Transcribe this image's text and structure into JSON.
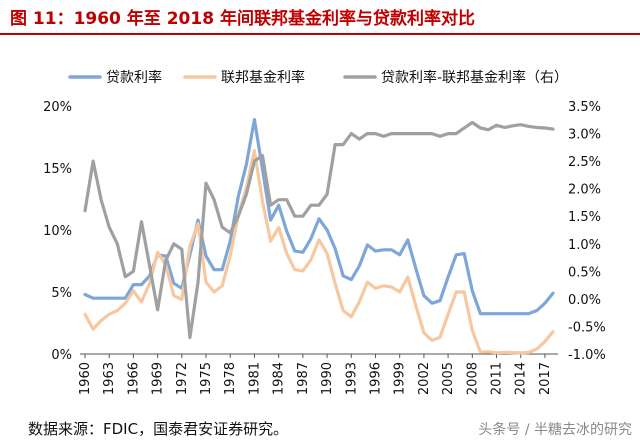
{
  "header": {
    "title": "图 11：1960 年至 2018 年间联邦基金利率与贷款利率对比"
  },
  "footer": {
    "source": "数据来源：FDIC，国泰君安证券研究。",
    "watermark": "头条号 / 半糖去冰的研究"
  },
  "chart_data": {
    "type": "line",
    "title": "图 11：1960 年至 2018 年间联邦基金利率与贷款利率对比",
    "x": [
      1960,
      1961,
      1962,
      1963,
      1964,
      1965,
      1966,
      1967,
      1968,
      1969,
      1970,
      1971,
      1972,
      1973,
      1974,
      1975,
      1976,
      1977,
      1978,
      1979,
      1980,
      1981,
      1982,
      1983,
      1984,
      1985,
      1986,
      1987,
      1988,
      1989,
      1990,
      1991,
      1992,
      1993,
      1994,
      1995,
      1996,
      1997,
      1998,
      1999,
      2000,
      2001,
      2002,
      2003,
      2004,
      2005,
      2006,
      2007,
      2008,
      2009,
      2010,
      2011,
      2012,
      2013,
      2014,
      2015,
      2016,
      2017,
      2018
    ],
    "x_ticks": [
      "1960",
      "1963",
      "1966",
      "1969",
      "1972",
      "1975",
      "1978",
      "1981",
      "1984",
      "1987",
      "1990",
      "1993",
      "1996",
      "1999",
      "2002",
      "2005",
      "2008",
      "2011",
      "2014",
      "2017"
    ],
    "y_left": {
      "range": [
        0,
        20
      ],
      "ticks": [
        "0%",
        "5%",
        "10%",
        "15%",
        "20%"
      ]
    },
    "y_right": {
      "range": [
        -1.0,
        3.5
      ],
      "ticks": [
        "-1.0%",
        "-0.5%",
        "0.0%",
        "0.5%",
        "1.0%",
        "1.5%",
        "2.0%",
        "2.5%",
        "3.0%",
        "3.5%"
      ]
    },
    "legend": [
      "贷款利率",
      "联邦基金利率",
      "贷款利率-联邦基金利率（右）"
    ],
    "series": [
      {
        "name": "贷款利率",
        "axis": "left",
        "color": "#7ea6d8",
        "values": [
          4.8,
          4.5,
          4.5,
          4.5,
          4.5,
          4.5,
          5.6,
          5.6,
          6.3,
          8.0,
          7.9,
          5.7,
          5.3,
          8.0,
          10.8,
          7.9,
          6.8,
          6.8,
          9.1,
          12.7,
          15.3,
          18.9,
          14.9,
          10.8,
          12.0,
          9.9,
          8.3,
          8.2,
          9.3,
          10.9,
          10.0,
          8.5,
          6.3,
          6.0,
          7.1,
          8.8,
          8.3,
          8.4,
          8.4,
          8.0,
          9.2,
          6.9,
          4.7,
          4.1,
          4.3,
          6.2,
          8.0,
          8.1,
          5.1,
          3.25,
          3.25,
          3.25,
          3.25,
          3.25,
          3.25,
          3.26,
          3.51,
          4.1,
          4.9
        ]
      },
      {
        "name": "联邦基金利率",
        "axis": "left",
        "color": "#f7c8a0",
        "values": [
          3.2,
          2.0,
          2.7,
          3.2,
          3.5,
          4.1,
          5.1,
          4.2,
          5.7,
          8.2,
          7.2,
          4.7,
          4.4,
          8.7,
          10.5,
          5.8,
          5.0,
          5.5,
          7.9,
          11.2,
          13.4,
          16.4,
          12.3,
          9.1,
          10.2,
          8.1,
          6.8,
          6.7,
          7.6,
          9.2,
          8.1,
          5.7,
          3.5,
          3.0,
          4.2,
          5.8,
          5.3,
          5.5,
          5.4,
          5.0,
          6.2,
          3.9,
          1.7,
          1.1,
          1.35,
          3.2,
          5.0,
          5.0,
          1.9,
          0.16,
          0.18,
          0.1,
          0.14,
          0.11,
          0.09,
          0.13,
          0.4,
          1.0,
          1.8
        ]
      },
      {
        "name": "贷款利率-联邦基金利率（右）",
        "axis": "right",
        "color": "#a0a0a0",
        "values": [
          1.6,
          2.5,
          1.8,
          1.3,
          1.0,
          0.4,
          0.5,
          1.4,
          0.6,
          -0.2,
          0.7,
          1.0,
          0.9,
          -0.7,
          0.3,
          2.1,
          1.8,
          1.3,
          1.2,
          1.5,
          1.9,
          2.5,
          2.6,
          1.7,
          1.8,
          1.8,
          1.5,
          1.5,
          1.7,
          1.7,
          1.9,
          2.8,
          2.8,
          3.0,
          2.9,
          3.0,
          3.0,
          2.95,
          3.0,
          3.0,
          3.0,
          3.0,
          3.0,
          3.0,
          2.95,
          3.0,
          3.0,
          3.1,
          3.2,
          3.1,
          3.07,
          3.15,
          3.11,
          3.14,
          3.16,
          3.13,
          3.11,
          3.1,
          3.08
        ]
      }
    ]
  }
}
